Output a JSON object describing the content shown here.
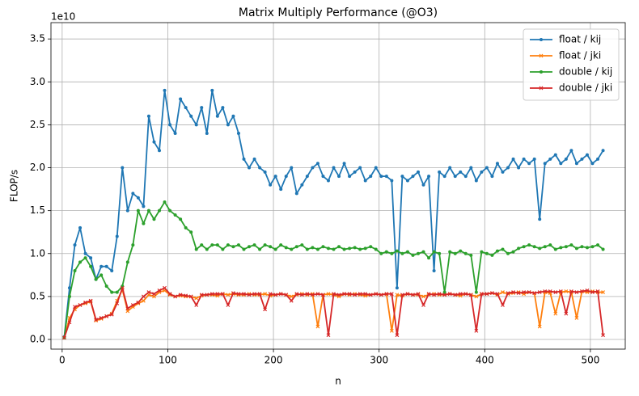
{
  "chart_data": {
    "type": "line",
    "title": "Matrix Multiply Performance (@O3)",
    "xlabel": "n",
    "ylabel": "FLOP/s",
    "y_offset_text": "1e10",
    "x": [
      2,
      7,
      12,
      17,
      22,
      27,
      32,
      37,
      42,
      47,
      52,
      57,
      62,
      67,
      72,
      77,
      82,
      87,
      92,
      97,
      102,
      107,
      112,
      117,
      122,
      127,
      132,
      137,
      142,
      147,
      152,
      157,
      162,
      167,
      172,
      177,
      182,
      187,
      192,
      197,
      202,
      207,
      212,
      217,
      222,
      227,
      232,
      237,
      242,
      247,
      252,
      257,
      262,
      267,
      272,
      277,
      282,
      287,
      292,
      297,
      302,
      307,
      312,
      317,
      322,
      327,
      332,
      337,
      342,
      347,
      352,
      357,
      362,
      367,
      372,
      377,
      382,
      387,
      392,
      397,
      402,
      407,
      412,
      417,
      422,
      427,
      432,
      437,
      442,
      447,
      452,
      457,
      462,
      467,
      472,
      477,
      482,
      487,
      492,
      497,
      502,
      507,
      512
    ],
    "series": [
      {
        "name": "float / kij",
        "color": "#1f77b4",
        "marker": "o",
        "values": [
          0.03,
          0.6,
          1.1,
          1.3,
          1.0,
          0.95,
          0.7,
          0.85,
          0.85,
          0.8,
          1.2,
          2.0,
          1.5,
          1.7,
          1.65,
          1.55,
          2.6,
          2.3,
          2.2,
          2.9,
          2.5,
          2.4,
          2.8,
          2.7,
          2.6,
          2.5,
          2.7,
          2.4,
          2.9,
          2.6,
          2.7,
          2.5,
          2.6,
          2.4,
          2.1,
          2.0,
          2.1,
          2.0,
          1.95,
          1.8,
          1.9,
          1.75,
          1.9,
          2.0,
          1.7,
          1.8,
          1.9,
          2.0,
          2.05,
          1.9,
          1.85,
          2.0,
          1.9,
          2.05,
          1.9,
          1.95,
          2.0,
          1.85,
          1.9,
          2.0,
          1.9,
          1.9,
          1.85,
          0.6,
          1.9,
          1.85,
          1.9,
          1.95,
          1.8,
          1.9,
          0.8,
          1.95,
          1.9,
          2.0,
          1.9,
          1.95,
          1.9,
          2.0,
          1.85,
          1.95,
          2.0,
          1.9,
          2.05,
          1.95,
          2.0,
          2.1,
          2.0,
          2.1,
          2.05,
          2.1,
          1.4,
          2.05,
          2.1,
          2.15,
          2.05,
          2.1,
          2.2,
          2.05,
          2.1,
          2.15,
          2.05,
          2.1,
          2.2
        ]
      },
      {
        "name": "float / jki",
        "color": "#ff7f0e",
        "marker": "x",
        "values": [
          0.02,
          0.25,
          0.35,
          0.4,
          0.42,
          0.44,
          0.22,
          0.24,
          0.27,
          0.3,
          0.45,
          0.58,
          0.33,
          0.38,
          0.42,
          0.45,
          0.52,
          0.5,
          0.55,
          0.57,
          0.52,
          0.5,
          0.51,
          0.5,
          0.5,
          0.48,
          0.51,
          0.52,
          0.52,
          0.51,
          0.53,
          0.52,
          0.53,
          0.52,
          0.52,
          0.53,
          0.52,
          0.52,
          0.53,
          0.51,
          0.52,
          0.53,
          0.52,
          0.5,
          0.52,
          0.53,
          0.52,
          0.53,
          0.15,
          0.52,
          0.53,
          0.52,
          0.5,
          0.53,
          0.52,
          0.53,
          0.52,
          0.51,
          0.52,
          0.53,
          0.52,
          0.53,
          0.1,
          0.52,
          0.51,
          0.53,
          0.52,
          0.52,
          0.5,
          0.52,
          0.53,
          0.52,
          0.52,
          0.53,
          0.52,
          0.51,
          0.53,
          0.52,
          0.5,
          0.53,
          0.53,
          0.54,
          0.52,
          0.55,
          0.53,
          0.54,
          0.55,
          0.53,
          0.55,
          0.54,
          0.15,
          0.55,
          0.54,
          0.3,
          0.55,
          0.56,
          0.55,
          0.25,
          0.56,
          0.55,
          0.56,
          0.55,
          0.55
        ]
      },
      {
        "name": "double / kij",
        "color": "#2ca02c",
        "marker": "o",
        "values": [
          0.02,
          0.5,
          0.8,
          0.9,
          0.95,
          0.85,
          0.7,
          0.75,
          0.62,
          0.55,
          0.55,
          0.62,
          0.9,
          1.1,
          1.5,
          1.35,
          1.5,
          1.4,
          1.5,
          1.6,
          1.5,
          1.45,
          1.4,
          1.3,
          1.25,
          1.05,
          1.1,
          1.05,
          1.1,
          1.1,
          1.05,
          1.1,
          1.08,
          1.1,
          1.05,
          1.08,
          1.1,
          1.05,
          1.1,
          1.08,
          1.05,
          1.1,
          1.07,
          1.05,
          1.08,
          1.1,
          1.05,
          1.07,
          1.05,
          1.08,
          1.06,
          1.05,
          1.08,
          1.05,
          1.06,
          1.07,
          1.05,
          1.06,
          1.08,
          1.05,
          1.0,
          1.02,
          1.0,
          1.03,
          1.0,
          1.02,
          0.98,
          1.0,
          1.02,
          0.95,
          1.02,
          1.0,
          0.55,
          1.02,
          1.0,
          1.03,
          1.0,
          0.98,
          0.55,
          1.02,
          1.0,
          0.98,
          1.03,
          1.05,
          1.0,
          1.02,
          1.06,
          1.08,
          1.1,
          1.08,
          1.06,
          1.08,
          1.1,
          1.05,
          1.07,
          1.08,
          1.1,
          1.06,
          1.08,
          1.07,
          1.08,
          1.1,
          1.05
        ]
      },
      {
        "name": "double / jki",
        "color": "#d62728",
        "marker": "x",
        "values": [
          0.02,
          0.2,
          0.38,
          0.4,
          0.43,
          0.45,
          0.23,
          0.25,
          0.27,
          0.29,
          0.42,
          0.6,
          0.36,
          0.4,
          0.43,
          0.5,
          0.55,
          0.53,
          0.57,
          0.6,
          0.53,
          0.5,
          0.52,
          0.51,
          0.5,
          0.4,
          0.52,
          0.52,
          0.53,
          0.53,
          0.53,
          0.4,
          0.54,
          0.53,
          0.53,
          0.52,
          0.53,
          0.53,
          0.35,
          0.53,
          0.52,
          0.53,
          0.52,
          0.45,
          0.53,
          0.52,
          0.53,
          0.52,
          0.53,
          0.52,
          0.05,
          0.53,
          0.52,
          0.53,
          0.53,
          0.52,
          0.53,
          0.53,
          0.52,
          0.53,
          0.52,
          0.53,
          0.53,
          0.05,
          0.52,
          0.53,
          0.52,
          0.53,
          0.4,
          0.53,
          0.52,
          0.53,
          0.52,
          0.53,
          0.52,
          0.53,
          0.53,
          0.52,
          0.1,
          0.53,
          0.53,
          0.54,
          0.53,
          0.4,
          0.54,
          0.55,
          0.54,
          0.55,
          0.55,
          0.54,
          0.55,
          0.56,
          0.56,
          0.55,
          0.56,
          0.3,
          0.56,
          0.55,
          0.56,
          0.57,
          0.55,
          0.56,
          0.05
        ]
      }
    ],
    "xlim": [
      -10.6,
      533
    ],
    "ylim": [
      -0.113,
      3.69
    ],
    "xticks": [
      0,
      100,
      200,
      300,
      400,
      500
    ],
    "yticks": [
      {
        "value": 0,
        "label": "0.0"
      },
      0.5,
      {
        "value": 1,
        "label": "1.0"
      },
      1.5,
      {
        "value": 2,
        "label": "2.0"
      },
      2.5,
      {
        "value": 3,
        "label": "3.0"
      },
      3.5
    ],
    "grid": true,
    "legend": "upper right"
  }
}
